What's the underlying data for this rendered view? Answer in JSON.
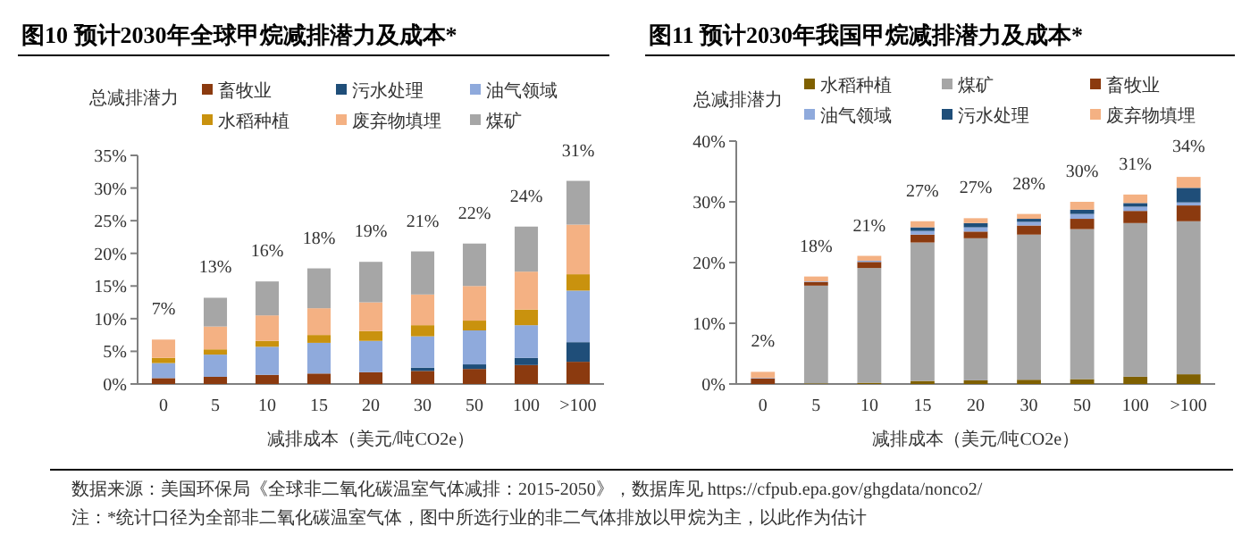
{
  "chart_data": [
    {
      "type": "bar",
      "stacked": true,
      "title": "图10 预计2030年全球甲烷减排潜力及成本*",
      "ylabel": "总减排潜力",
      "xlabel": "减排成本（美元/吨CO2e）",
      "legend": "top",
      "categories": [
        "0",
        "5",
        "10",
        "15",
        "20",
        "30",
        "50",
        "100",
        ">100"
      ],
      "series": [
        {
          "name": "畜牧业",
          "color": "#8b3a0f",
          "values": [
            0.9,
            1.1,
            1.4,
            1.6,
            1.8,
            2.0,
            2.3,
            2.9,
            3.4
          ]
        },
        {
          "name": "污水处理",
          "color": "#1f4e79",
          "values": [
            0,
            0,
            0,
            0,
            0,
            0.5,
            0.7,
            1.1,
            3.0
          ]
        },
        {
          "name": "油气领域",
          "color": "#8faadc",
          "values": [
            2.3,
            3.4,
            4.3,
            4.7,
            4.8,
            4.8,
            5.2,
            5.0,
            7.9
          ]
        },
        {
          "name": "水稻种植",
          "color": "#c9920e",
          "values": [
            0.8,
            0.8,
            0.9,
            1.2,
            1.5,
            1.7,
            1.5,
            2.4,
            2.5
          ]
        },
        {
          "name": "废弃物填埋",
          "color": "#f4b183",
          "values": [
            2.8,
            3.5,
            3.9,
            4.1,
            4.4,
            4.7,
            5.3,
            5.8,
            7.6
          ]
        },
        {
          "name": "煤矿",
          "color": "#a6a6a6",
          "values": [
            0,
            4.4,
            5.2,
            6.1,
            6.2,
            6.6,
            6.5,
            6.9,
            6.7
          ]
        }
      ],
      "totals": [
        "7%",
        "13%",
        "16%",
        "18%",
        "19%",
        "21%",
        "22%",
        "24%",
        "31%"
      ],
      "ylim": [
        0,
        35
      ],
      "yticks": [
        {
          "value": 0,
          "label": "0%"
        },
        {
          "value": 5,
          "label": "5%"
        },
        {
          "value": 10,
          "label": "10%"
        },
        {
          "value": 15,
          "label": "15%"
        },
        {
          "value": 20,
          "label": "20%"
        },
        {
          "value": 25,
          "label": "25%"
        },
        {
          "value": 30,
          "label": "30%"
        },
        {
          "value": 35,
          "label": "35%"
        }
      ],
      "annotations": [
        "数据来源：美国环保局《全球非二氧化碳温室气体减排：2015-2050》，数据库见 https://cfpub.epa.gov/ghgdata/nonco2/",
        "注：*统计口径为全部非二氧化碳温室气体，图中所选行业的非二气体排放以甲烷为主，以此作为估计"
      ]
    },
    {
      "type": "bar",
      "stacked": true,
      "title": "图11 预计2030年我国甲烷减排潜力及成本*",
      "ylabel": "总减排潜力",
      "xlabel": "减排成本（美元/吨CO2e）",
      "legend": "top",
      "categories": [
        "0",
        "5",
        "10",
        "15",
        "20",
        "30",
        "50",
        "100",
        ">100"
      ],
      "series": [
        {
          "name": "水稻种植",
          "color": "#7f6000",
          "values": [
            0,
            0.1,
            0.2,
            0.5,
            0.6,
            0.7,
            0.8,
            1.2,
            1.6
          ]
        },
        {
          "name": "煤矿",
          "color": "#a6a6a6",
          "values": [
            0,
            16.1,
            18.9,
            22.8,
            23.4,
            23.9,
            24.7,
            25.3,
            25.2
          ]
        },
        {
          "name": "畜牧业",
          "color": "#8b3a0f",
          "values": [
            0.9,
            0.6,
            1.0,
            1.3,
            1.1,
            1.5,
            1.7,
            2.0,
            2.6
          ]
        },
        {
          "name": "油气领域",
          "color": "#8faadc",
          "values": [
            0.1,
            0.1,
            0.2,
            0.6,
            0.7,
            0.6,
            0.8,
            0.7,
            0.5
          ]
        },
        {
          "name": "污水处理",
          "color": "#1f4e79",
          "values": [
            0,
            0,
            0,
            0.6,
            0.7,
            0.5,
            0.7,
            0.6,
            2.4
          ]
        },
        {
          "name": "废弃物填埋",
          "color": "#f4b183",
          "values": [
            1.0,
            0.8,
            0.8,
            1.0,
            0.8,
            0.8,
            1.3,
            1.4,
            1.8
          ]
        }
      ],
      "totals": [
        "2%",
        "18%",
        "21%",
        "27%",
        "27%",
        "28%",
        "30%",
        "31%",
        "34%"
      ],
      "ylim": [
        0,
        40
      ],
      "yticks": [
        {
          "value": 0,
          "label": "0%"
        },
        {
          "value": 10,
          "label": "10%"
        },
        {
          "value": 20,
          "label": "20%"
        },
        {
          "value": 30,
          "label": "30%"
        },
        {
          "value": 40,
          "label": "40%"
        }
      ]
    }
  ]
}
